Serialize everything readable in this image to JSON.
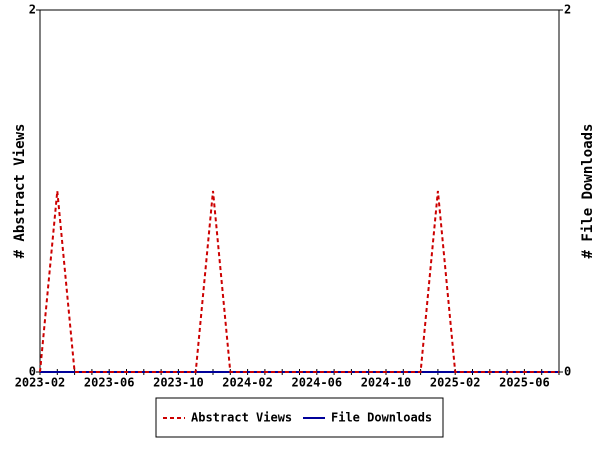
{
  "chart_data": {
    "type": "line",
    "x": [
      "2023-02",
      null,
      null,
      null,
      "2023-06",
      null,
      null,
      null,
      "2023-10",
      null,
      null,
      null,
      "2024-02",
      null,
      null,
      null,
      "2024-06",
      null,
      null,
      null,
      "2024-10",
      null,
      null,
      null,
      "2025-02",
      null,
      null,
      null,
      "2025-06",
      null,
      null
    ],
    "series": [
      {
        "name": "Abstract Views",
        "color": "#cc0000",
        "dashed": true,
        "axis": "y",
        "values": [
          0,
          1,
          0,
          0,
          0,
          0,
          0,
          0,
          0,
          0,
          1,
          0,
          0,
          0,
          0,
          0,
          0,
          0,
          0,
          0,
          0,
          0,
          0,
          1,
          0,
          0,
          0,
          0,
          0,
          0,
          0
        ]
      },
      {
        "name": "File Downloads",
        "color": "#000099",
        "dashed": false,
        "axis": "y2",
        "values": [
          0,
          0,
          0,
          0,
          0,
          0,
          0,
          0,
          0,
          0,
          0,
          0,
          0,
          0,
          0,
          0,
          0,
          0,
          0,
          0,
          0,
          0,
          0,
          0,
          0,
          0,
          0,
          0,
          0,
          0,
          0
        ]
      }
    ],
    "ylabel": "# Abstract Views",
    "y2label": "# File Downloads",
    "ylim": [
      0,
      2
    ],
    "yticks": [
      0,
      2
    ],
    "y2lim": [
      0,
      2
    ],
    "y2ticks": [
      0,
      2
    ]
  }
}
